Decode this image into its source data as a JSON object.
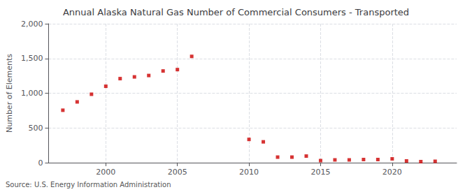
{
  "chart_data": {
    "type": "scatter",
    "title": "Annual Alaska Natural Gas Number of Commercial Consumers - Transported",
    "ylabel": "Number of Elements",
    "source": "Source: U.S. Energy Information Administration",
    "x": [
      1997,
      1998,
      1999,
      2000,
      2001,
      2002,
      2003,
      2004,
      2005,
      2006,
      2010,
      2011,
      2012,
      2013,
      2014,
      2015,
      2016,
      2017,
      2018,
      2019,
      2020,
      2021,
      2022,
      2023
    ],
    "values": [
      755,
      875,
      985,
      1100,
      1210,
      1235,
      1255,
      1320,
      1340,
      1530,
      335,
      300,
      80,
      80,
      95,
      30,
      40,
      40,
      45,
      45,
      55,
      25,
      15,
      20
    ],
    "color": "#cc0000",
    "marker": "square",
    "xlim": [
      1996,
      2024.5
    ],
    "xticks": [
      2000,
      2005,
      2010,
      2015,
      2020
    ],
    "ylim": [
      0,
      2000
    ],
    "yticks": [
      0,
      500,
      {
        "value": 1000,
        "label": "1,000"
      },
      {
        "value": 1500,
        "label": "1,500"
      },
      {
        "value": 2000,
        "label": "2,000"
      }
    ],
    "grid": true
  }
}
